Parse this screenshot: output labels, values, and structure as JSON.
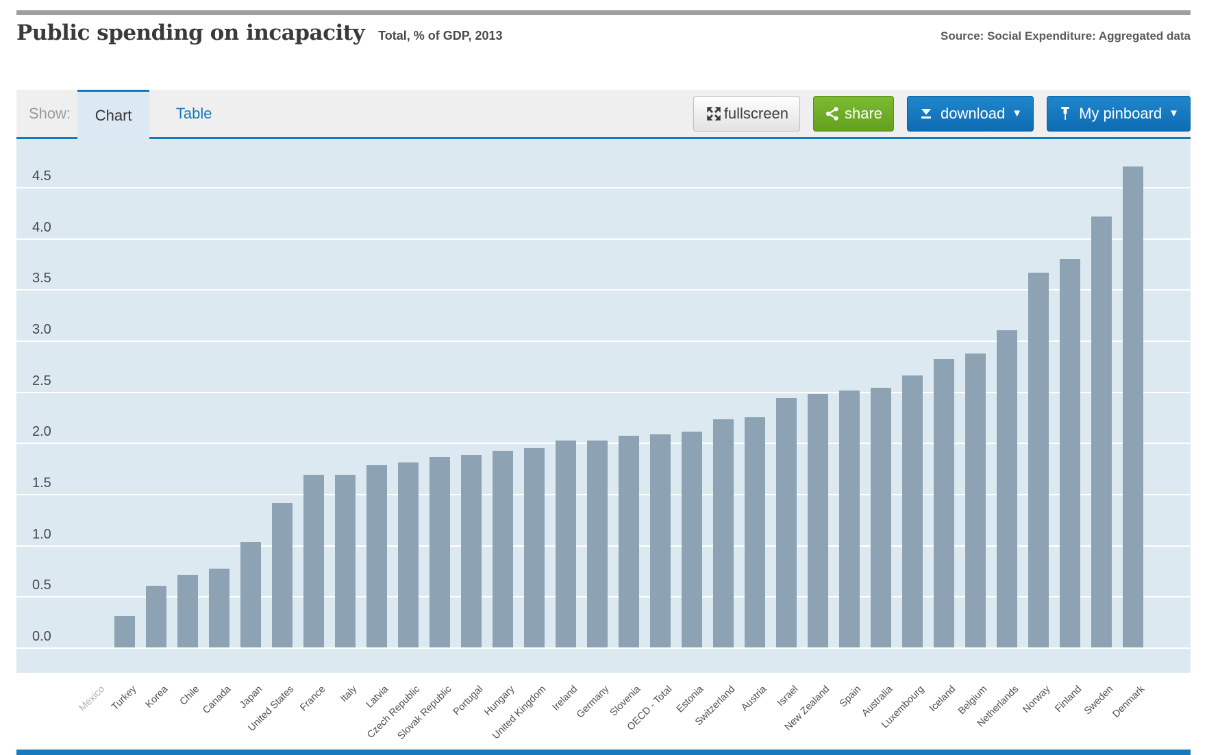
{
  "header": {
    "title": "Public spending on incapacity",
    "subtitle": "Total, % of GDP, 2013",
    "source": "Source: Social Expenditure: Aggregated data"
  },
  "toolbar": {
    "show_label": "Show:",
    "tabs": [
      {
        "label": "Chart",
        "active": true
      },
      {
        "label": "Table",
        "active": false
      }
    ],
    "buttons": {
      "fullscreen": "fullscreen",
      "share": "share",
      "download": "download",
      "pinboard": "My pinboard",
      "caret": "▼"
    }
  },
  "colors": {
    "accent_blue": "#1779b8",
    "button_blue": "#0e6cb4",
    "button_green": "#63a01e",
    "bar_fill": "#8da3b4",
    "chart_background": "#dde9f1",
    "gridline": "#ffffff",
    "muted_label": "#b3b3b3"
  },
  "chart_data": {
    "type": "bar",
    "title": "Public spending on incapacity",
    "subtitle": "Total, % of GDP, 2013",
    "ylabel": "% of GDP",
    "year": "2013",
    "ylim": [
      0,
      4.7
    ],
    "yticks": [
      "0.0",
      "0.5",
      "1.0",
      "1.5",
      "2.0",
      "2.5",
      "3.0",
      "3.5",
      "4.0",
      "4.5"
    ],
    "grid": true,
    "legend": "none",
    "muted_categories": [
      "Mexico"
    ],
    "categories": [
      "Mexico",
      "Turkey",
      "Korea",
      "Chile",
      "Canada",
      "Japan",
      "United States",
      "France",
      "Italy",
      "Latvia",
      "Czech Republic",
      "Slovak Republic",
      "Portugal",
      "Hungary",
      "United Kingdom",
      "Ireland",
      "Germany",
      "Slovenia",
      "OECD - Total",
      "Estonia",
      "Switzerland",
      "Austria",
      "Israel",
      "New Zealand",
      "Spain",
      "Australia",
      "Luxembourg",
      "Iceland",
      "Belgium",
      "Netherlands",
      "Norway",
      "Finland",
      "Sweden",
      "Denmark"
    ],
    "values": [
      0,
      0.31,
      0.6,
      0.71,
      0.77,
      1.03,
      1.41,
      1.69,
      1.69,
      1.78,
      1.81,
      1.86,
      1.88,
      1.92,
      1.95,
      2.02,
      2.02,
      2.07,
      2.08,
      2.11,
      2.23,
      2.25,
      2.44,
      2.48,
      2.51,
      2.54,
      2.66,
      2.82,
      2.87,
      3.1,
      3.66,
      3.8,
      4.21,
      4.7
    ]
  }
}
